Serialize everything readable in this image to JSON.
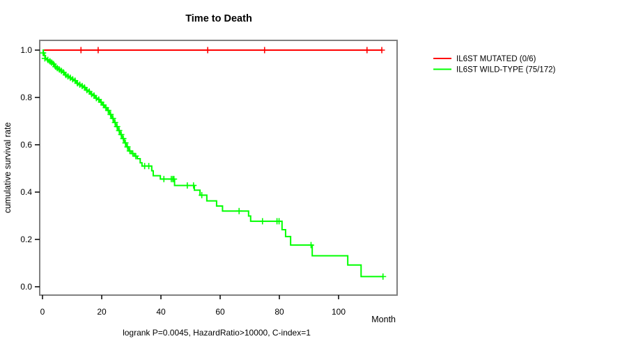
{
  "title": {
    "text": "Time to Death"
  },
  "axes": {
    "x_label": "Month",
    "y_label": "cumulative survival rate",
    "x_ticks": [
      {
        "v": 0,
        "label": "0"
      },
      {
        "v": 20,
        "label": "20"
      },
      {
        "v": 40,
        "label": "40"
      },
      {
        "v": 60,
        "label": "60"
      },
      {
        "v": 80,
        "label": "80"
      },
      {
        "v": 100,
        "label": "100"
      }
    ],
    "y_ticks": [
      {
        "v": 0.0,
        "label": "0.0"
      },
      {
        "v": 0.2,
        "label": "0.2"
      },
      {
        "v": 0.4,
        "label": "0.4"
      },
      {
        "v": 0.6,
        "label": "0.6"
      },
      {
        "v": 0.8,
        "label": "0.8"
      },
      {
        "v": 1.0,
        "label": "1.0"
      }
    ]
  },
  "footer": {
    "text": "logrank P=0.0045, HazardRatio>10000, C-index=1"
  },
  "legend": {
    "items": [
      {
        "label": "IL6ST MUTATED (0/6)",
        "color": "#ff0000"
      },
      {
        "label": "IL6ST WILD-TYPE (75/172)",
        "color": "#00ff00"
      }
    ]
  },
  "colors": {
    "box": "#808080",
    "text": "#000000",
    "background": "#ffffff"
  },
  "chart_data": {
    "type": "line",
    "subtype": "kaplan-meier-step",
    "title": "Time to Death",
    "xlabel": "Month",
    "ylabel": "cumulative survival rate",
    "xlim": [
      0,
      119
    ],
    "ylim": [
      0,
      1.04
    ],
    "grid": false,
    "legend_position": "outside-top-right",
    "annotation": "logrank P=0.0045, HazardRatio>10000, C-index=1",
    "series": [
      {
        "name": "IL6ST MUTATED (0/6)",
        "color": "#ff0000",
        "events": "0/6",
        "start": [
          0,
          1.0
        ],
        "steps": [],
        "end_t": 114.6,
        "censors": [
          [
            13.0,
            1.0
          ],
          [
            18.8,
            1.0
          ],
          [
            55.8,
            1.0
          ],
          [
            75.0,
            1.0
          ],
          [
            109.6,
            1.0
          ],
          [
            114.6,
            1.0
          ]
        ]
      },
      {
        "name": "IL6ST WILD-TYPE (75/172)",
        "color": "#00ff00",
        "events": "75/172",
        "start": [
          0,
          1.0
        ],
        "steps": [
          [
            0.3,
            0.988
          ],
          [
            0.6,
            0.977
          ],
          [
            1.0,
            0.965
          ],
          [
            1.6,
            0.959
          ],
          [
            2.2,
            0.953
          ],
          [
            2.8,
            0.947
          ],
          [
            3.4,
            0.941
          ],
          [
            4.0,
            0.93
          ],
          [
            4.7,
            0.924
          ],
          [
            5.4,
            0.918
          ],
          [
            6.1,
            0.912
          ],
          [
            6.8,
            0.906
          ],
          [
            7.5,
            0.895
          ],
          [
            8.2,
            0.889
          ],
          [
            9.0,
            0.883
          ],
          [
            9.8,
            0.877
          ],
          [
            10.6,
            0.871
          ],
          [
            11.4,
            0.86
          ],
          [
            12.2,
            0.854
          ],
          [
            13.0,
            0.848
          ],
          [
            13.8,
            0.842
          ],
          [
            14.6,
            0.831
          ],
          [
            15.4,
            0.825
          ],
          [
            16.2,
            0.814
          ],
          [
            17.0,
            0.808
          ],
          [
            17.8,
            0.797
          ],
          [
            18.6,
            0.791
          ],
          [
            19.4,
            0.78
          ],
          [
            20.2,
            0.768
          ],
          [
            21.0,
            0.757
          ],
          [
            21.8,
            0.745
          ],
          [
            22.6,
            0.728
          ],
          [
            23.4,
            0.711
          ],
          [
            24.1,
            0.694
          ],
          [
            24.8,
            0.677
          ],
          [
            25.5,
            0.66
          ],
          [
            26.2,
            0.643
          ],
          [
            26.9,
            0.626
          ],
          [
            27.6,
            0.608
          ],
          [
            28.3,
            0.591
          ],
          [
            29.1,
            0.574
          ],
          [
            30.0,
            0.563
          ],
          [
            31.0,
            0.552
          ],
          [
            32.0,
            0.541
          ],
          [
            33.0,
            0.524
          ],
          [
            33.6,
            0.51
          ],
          [
            36.9,
            0.49
          ],
          [
            37.4,
            0.469
          ],
          [
            39.8,
            0.455
          ],
          [
            44.6,
            0.428
          ],
          [
            51.3,
            0.408
          ],
          [
            53.2,
            0.387
          ],
          [
            55.5,
            0.363
          ],
          [
            58.8,
            0.341
          ],
          [
            60.8,
            0.32
          ],
          [
            69.6,
            0.299
          ],
          [
            70.3,
            0.277
          ],
          [
            80.9,
            0.241
          ],
          [
            82.1,
            0.212
          ],
          [
            83.8,
            0.176
          ],
          [
            91.1,
            0.131
          ],
          [
            103.1,
            0.092
          ],
          [
            107.6,
            0.043
          ]
        ],
        "end_t": 115.2,
        "censors": [
          [
            0.2,
            0.988
          ],
          [
            0.8,
            0.965
          ],
          [
            1.8,
            0.959
          ],
          [
            2.5,
            0.953
          ],
          [
            3.1,
            0.947
          ],
          [
            3.7,
            0.941
          ],
          [
            4.4,
            0.93
          ],
          [
            5.0,
            0.924
          ],
          [
            5.7,
            0.918
          ],
          [
            6.4,
            0.912
          ],
          [
            7.1,
            0.906
          ],
          [
            7.9,
            0.895
          ],
          [
            8.6,
            0.889
          ],
          [
            9.4,
            0.883
          ],
          [
            10.2,
            0.877
          ],
          [
            11.0,
            0.871
          ],
          [
            11.8,
            0.86
          ],
          [
            12.6,
            0.854
          ],
          [
            13.4,
            0.848
          ],
          [
            14.2,
            0.842
          ],
          [
            15.0,
            0.831
          ],
          [
            15.8,
            0.825
          ],
          [
            16.6,
            0.814
          ],
          [
            17.4,
            0.808
          ],
          [
            18.2,
            0.797
          ],
          [
            19.0,
            0.791
          ],
          [
            19.8,
            0.78
          ],
          [
            20.6,
            0.768
          ],
          [
            21.4,
            0.757
          ],
          [
            22.2,
            0.745
          ],
          [
            23.0,
            0.728
          ],
          [
            23.8,
            0.711
          ],
          [
            24.5,
            0.694
          ],
          [
            25.2,
            0.677
          ],
          [
            25.9,
            0.66
          ],
          [
            26.6,
            0.643
          ],
          [
            27.3,
            0.626
          ],
          [
            28.0,
            0.608
          ],
          [
            28.7,
            0.591
          ],
          [
            29.5,
            0.574
          ],
          [
            30.5,
            0.563
          ],
          [
            31.5,
            0.552
          ],
          [
            34.5,
            0.51
          ],
          [
            35.9,
            0.51
          ],
          [
            41.0,
            0.455
          ],
          [
            43.5,
            0.455
          ],
          [
            44.0,
            0.455
          ],
          [
            44.4,
            0.455
          ],
          [
            48.9,
            0.428
          ],
          [
            51.0,
            0.428
          ],
          [
            53.8,
            0.387
          ],
          [
            66.4,
            0.32
          ],
          [
            74.3,
            0.277
          ],
          [
            79.2,
            0.277
          ],
          [
            79.9,
            0.277
          ],
          [
            90.7,
            0.176
          ],
          [
            115.0,
            0.043
          ]
        ]
      }
    ]
  }
}
